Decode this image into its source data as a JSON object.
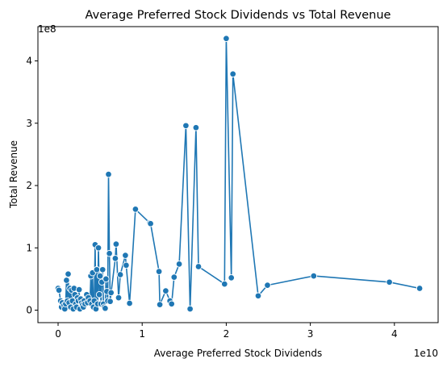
{
  "chart_data": {
    "type": "line",
    "title": "Average Preferred Stock Dividends vs Total Revenue",
    "xlabel": "Average Preferred Stock Dividends",
    "ylabel": "Total Revenue",
    "x_multiplier": "1e10",
    "y_multiplier": "1e8",
    "xlim": [
      -2400000000.0,
      45200000000.0
    ],
    "ylim": [
      -20000000.0,
      455000000.0
    ],
    "x_ticks": [
      0,
      10000000000.0,
      20000000000.0,
      30000000000.0,
      40000000000.0
    ],
    "x_tick_labels": [
      "0",
      "1",
      "2",
      "3",
      "4"
    ],
    "y_ticks": [
      0,
      100000000.0,
      200000000.0,
      300000000.0,
      400000000.0
    ],
    "y_tick_labels": [
      "0",
      "1",
      "2",
      "3",
      "4"
    ],
    "grid": false,
    "marker": "circle",
    "color": "#1f77b4",
    "series": [
      {
        "values_x": [
          0.0,
          100000000.0,
          300000000.0,
          400000000.0,
          500000000.0,
          700000000.0,
          800000000.0,
          900000000.0,
          1000000000.0,
          1100000000.0,
          1200000000.0,
          1300000000.0,
          1400000000.0,
          1500000000.0,
          1600000000.0,
          1700000000.0,
          1800000000.0,
          1900000000.0,
          2000000000.0,
          2100000000.0,
          2200000000.0,
          2300000000.0,
          2400000000.0,
          2500000000.0,
          2600000000.0,
          2700000000.0,
          2800000000.0,
          2900000000.0,
          3000000000.0,
          3100000000.0,
          3200000000.0,
          3400000000.0,
          3500000000.0,
          3600000000.0,
          3800000000.0,
          3900000000.0,
          4000000000.0,
          4100000000.0,
          4200000000.0,
          4300000000.0,
          4400000000.0,
          4500000000.0,
          4600000000.0,
          4700000000.0,
          4800000000.0,
          4900000000.0,
          5000000000.0,
          5100000000.0,
          5200000000.0,
          5300000000.0,
          5400000000.0,
          5500000000.0,
          5600000000.0,
          5700000000.0,
          5800000000.0,
          5900000000.0,
          6000000000.0,
          6100000000.0,
          6200000000.0,
          6300000000.0,
          6800000000.0,
          6900000000.0,
          7200000000.0,
          7400000000.0,
          8000000000.0,
          8100000000.0,
          8500000000.0,
          9200000000.0,
          10900000000.0,
          11000000000.0,
          12000000000.0,
          12100000000.0,
          12800000000.0,
          13300000000.0,
          13500000000.0,
          13800000000.0,
          14400000000.0,
          15200000000.0,
          15700000000.0,
          16400000000.0,
          16700000000.0,
          19800000000.0,
          20000000000.0,
          20600000000.0,
          20800000000.0,
          23800000000.0,
          24900000000.0,
          30400000000.0,
          39400000000.0,
          43000000000.0
        ],
        "values_y": [
          35000000.0,
          32000000.0,
          15000000.0,
          5000000.0,
          12000000.0,
          8000000.0,
          2000000.0,
          10000000.0,
          48000000.0,
          15000000.0,
          58000000.0,
          12000000.0,
          35000000.0,
          5000000.0,
          32000000.0,
          15000000.0,
          2000000.0,
          35000000.0,
          25000000.0,
          10000000.0,
          5000000.0,
          20000000.0,
          15000000.0,
          33000000.0,
          2000000.0,
          18000000.0,
          12000000.0,
          8000000.0,
          5000000.0,
          15000000.0,
          10000000.0,
          25000000.0,
          12000000.0,
          20000000.0,
          15000000.0,
          55000000.0,
          10000000.0,
          60000000.0,
          5000000.0,
          15000000.0,
          105000000.0,
          2000000.0,
          65000000.0,
          10000000.0,
          100000000.0,
          25000000.0,
          55000000.0,
          10000000.0,
          45000000.0,
          65000000.0,
          10000000.0,
          5000000.0,
          3000000.0,
          50000000.0,
          30000000.0,
          15000000.0,
          218000000.0,
          91000000.0,
          14000000.0,
          28000000.0,
          83000000.0,
          106000000.0,
          20000000.0,
          57000000.0,
          88000000.0,
          72000000.0,
          11000000.0,
          162000000.0,
          140000000.0,
          139000000.0,
          62000000.0,
          9000000.0,
          31000000.0,
          15000000.0,
          10000000.0,
          53000000.0,
          74000000.0,
          296000000.0,
          2000000.0,
          293000000.0,
          70000000.0,
          42000000.0,
          436000000.0,
          52000000.0,
          379000000.0,
          23000000.0,
          40000000.0,
          55000000.0,
          45000000.0,
          35000000.0
        ]
      }
    ]
  }
}
